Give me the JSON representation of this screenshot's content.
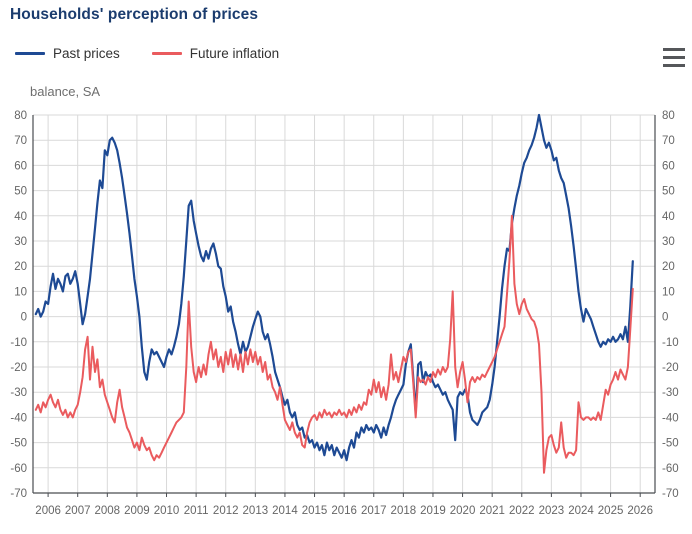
{
  "header": {
    "title": "Households' perception of prices"
  },
  "legend": [
    {
      "label": "Past prices",
      "color": "#1e4a94"
    },
    {
      "label": "Future inflation",
      "color": "#ea5b5e"
    }
  ],
  "menu": {
    "icon": "hamburger-export-menu"
  },
  "colors": {
    "title": "#1b3c6e",
    "axis_text": "#666666",
    "grid": "#d9d9d9",
    "axis_line": "#4a4d52",
    "past_prices": "#1e4a94",
    "future_inflation": "#ea5b5e"
  },
  "chart_data": {
    "type": "line",
    "title": "Households' perception of prices",
    "unit_label": "balance, SA",
    "grid": true,
    "legend_position": "top-left",
    "xlim": [
      2005.49,
      2026.5
    ],
    "ylim": [
      -70,
      80
    ],
    "y_tick_step": 10,
    "x_ticks": [
      2006,
      2007,
      2008,
      2009,
      2010,
      2011,
      2012,
      2013,
      2014,
      2015,
      2016,
      2017,
      2018,
      2019,
      2020,
      2021,
      2022,
      2023,
      2024,
      2025,
      2026
    ],
    "x_start": 2005.5833,
    "x_step": 0.083333,
    "series": [
      {
        "name": "Past prices",
        "color": "#1e4a94",
        "width": 2.2,
        "values": [
          1,
          3,
          0,
          2,
          6,
          5,
          12,
          17,
          11,
          15,
          13,
          10,
          16,
          17,
          13,
          15,
          18,
          13,
          5,
          -3,
          1,
          8,
          15,
          25,
          35,
          45,
          54,
          51,
          66,
          64,
          70,
          71,
          69,
          66,
          61,
          55,
          48,
          41,
          33,
          24,
          15,
          8,
          0,
          -12,
          -22,
          -25,
          -18,
          -13,
          -15,
          -14,
          -16,
          -18,
          -20,
          -16,
          -13,
          -15,
          -12,
          -8,
          -3,
          5,
          16,
          30,
          44,
          46,
          38,
          33,
          28,
          24,
          22,
          26,
          23,
          27,
          29,
          25,
          20,
          19,
          12,
          8,
          2,
          4,
          -2,
          -6,
          -11,
          -15,
          -10,
          -14,
          -12,
          -8,
          -4,
          -1,
          2,
          0,
          -6,
          -9,
          -7,
          -11,
          -16,
          -22,
          -25,
          -28,
          -32,
          -35,
          -33,
          -38,
          -40,
          -38,
          -43,
          -45,
          -44,
          -48,
          -47,
          -50,
          -49,
          -52,
          -50,
          -53,
          -51,
          -55,
          -50,
          -53,
          -51,
          -55,
          -52,
          -54,
          -56,
          -53,
          -57,
          -52,
          -49,
          -52,
          -46,
          -48,
          -44,
          -46,
          -43,
          -45,
          -44,
          -46,
          -43,
          -45,
          -48,
          -44,
          -47,
          -43,
          -40,
          -36,
          -33,
          -31,
          -29,
          -27,
          -19,
          -14,
          -11,
          -24,
          -38,
          -19,
          -18,
          -26,
          -22,
          -24,
          -23,
          -26,
          -28,
          -27,
          -29,
          -31,
          -30,
          -33,
          -35,
          -37,
          -49,
          -32,
          -30,
          -31,
          -29,
          -31,
          -38,
          -41,
          -42,
          -43,
          -41,
          -38,
          -37,
          -36,
          -33,
          -27,
          -20,
          -10,
          0,
          11,
          20,
          27,
          26,
          37,
          43,
          48,
          52,
          57,
          61,
          63,
          66,
          68,
          71,
          75,
          80,
          75,
          70,
          67,
          69,
          66,
          62,
          63,
          58,
          55,
          53,
          48,
          43,
          36,
          28,
          19,
          10,
          3,
          -2,
          3,
          1,
          -1,
          -4,
          -7,
          -10,
          -12,
          -10,
          -11,
          -9,
          -10,
          -8,
          -10,
          -9,
          -7,
          -9,
          -4,
          -10,
          4,
          22
        ]
      },
      {
        "name": "Future inflation",
        "color": "#ea5b5e",
        "width": 2,
        "values": [
          -37,
          -35,
          -38,
          -34,
          -36,
          -33,
          -31,
          -34,
          -36,
          -33,
          -37,
          -39,
          -37,
          -40,
          -38,
          -40,
          -37,
          -35,
          -30,
          -24,
          -13,
          -8,
          -25,
          -12,
          -22,
          -17,
          -28,
          -25,
          -31,
          -34,
          -37,
          -40,
          -42,
          -34,
          -29,
          -36,
          -40,
          -44,
          -46,
          -49,
          -52,
          -50,
          -53,
          -48,
          -51,
          -53,
          -52,
          -55,
          -57,
          -55,
          -56,
          -54,
          -52,
          -50,
          -48,
          -46,
          -44,
          -42,
          -41,
          -40,
          -38,
          -20,
          6,
          -12,
          -22,
          -26,
          -20,
          -24,
          -19,
          -23,
          -15,
          -10,
          -17,
          -13,
          -20,
          -16,
          -22,
          -14,
          -19,
          -13,
          -20,
          -15,
          -21,
          -15,
          -22,
          -14,
          -19,
          -13,
          -18,
          -14,
          -19,
          -16,
          -22,
          -18,
          -25,
          -23,
          -28,
          -30,
          -33,
          -28,
          -35,
          -41,
          -43,
          -45,
          -42,
          -46,
          -48,
          -46,
          -51,
          -52,
          -46,
          -42,
          -40,
          -39,
          -41,
          -38,
          -40,
          -37,
          -39,
          -38,
          -40,
          -38,
          -39,
          -37,
          -39,
          -38,
          -40,
          -37,
          -39,
          -36,
          -38,
          -35,
          -37,
          -34,
          -35,
          -29,
          -31,
          -25,
          -30,
          -26,
          -32,
          -28,
          -33,
          -27,
          -15,
          -25,
          -22,
          -26,
          -21,
          -16,
          -18,
          -14,
          -13,
          -26,
          -40,
          -24,
          -26,
          -25,
          -27,
          -24,
          -26,
          -22,
          -24,
          -21,
          -23,
          -20,
          -22,
          -20,
          -9,
          10,
          -20,
          -28,
          -22,
          -18,
          -25,
          -34,
          -26,
          -24,
          -26,
          -24,
          -25,
          -23,
          -24,
          -22,
          -20,
          -18,
          -16,
          -13,
          -10,
          -7,
          -4,
          9,
          22,
          40,
          13,
          5,
          1,
          5,
          7,
          3,
          1,
          -1,
          -2,
          -5,
          -11,
          -30,
          -62,
          -53,
          -48,
          -47,
          -51,
          -54,
          -52,
          -42,
          -52,
          -56,
          -54,
          -54,
          -55,
          -53,
          -34,
          -40,
          -41,
          -40,
          -40,
          -41,
          -40,
          -41,
          -38,
          -41,
          -35,
          -29,
          -31,
          -27,
          -25,
          -22,
          -25,
          -21,
          -23,
          -25,
          -20,
          -5,
          11
        ]
      }
    ]
  }
}
